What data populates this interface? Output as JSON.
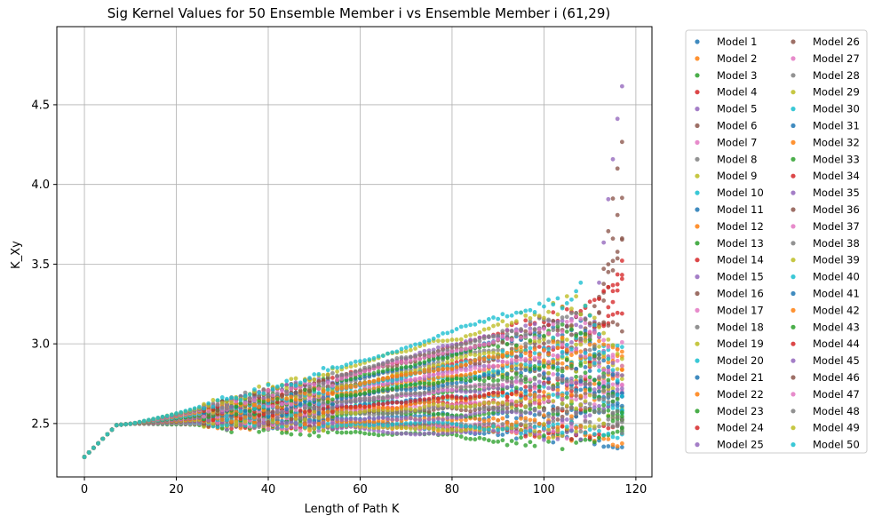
{
  "chart_data": {
    "type": "scatter",
    "title": "Sig Kernel Values for 50 Ensemble Member i vs Ensemble Member i (61,29)",
    "xlabel": "Length of Path K",
    "ylabel": "K_Xy",
    "xlim": [
      -6,
      123.5
    ],
    "ylim": [
      2.165,
      4.99
    ],
    "xticks": [
      0,
      20,
      40,
      60,
      80,
      100,
      120
    ],
    "yticks": [
      2.5,
      3.0,
      3.5,
      4.0,
      4.5
    ],
    "ytick_labels": [
      "2.5",
      "3.0",
      "3.5",
      "4.0",
      "4.5"
    ],
    "grid": true,
    "legend_placement": "outside-right",
    "legend_columns": 2,
    "x_max": 117,
    "palette": [
      "#1f77b4",
      "#ff7f0e",
      "#2ca02c",
      "#d62728",
      "#9467bd",
      "#8c564b",
      "#e377c2",
      "#7f7f7f",
      "#bcbd22",
      "#17becf"
    ],
    "series": [
      {
        "name": "Model 1",
        "end": 2.33
      },
      {
        "name": "Model 2",
        "end": 2.36
      },
      {
        "name": "Model 3",
        "end": 2.45
      },
      {
        "name": "Model 4",
        "end": 2.5
      },
      {
        "name": "Model 5",
        "end": 4.64
      },
      {
        "name": "Model 6",
        "end": 4.29
      },
      {
        "name": "Model 7",
        "end": 3.02
      },
      {
        "name": "Model 8",
        "end": 2.46
      },
      {
        "name": "Model 9",
        "end": 2.58
      },
      {
        "name": "Model 10",
        "end": 2.42
      },
      {
        "name": "Model 11",
        "end": 2.6
      },
      {
        "name": "Model 12",
        "end": 2.86
      },
      {
        "name": "Model 13",
        "end": 2.53
      },
      {
        "name": "Model 14",
        "end": 3.52
      },
      {
        "name": "Model 15",
        "end": 2.66
      },
      {
        "name": "Model 16",
        "end": 3.93
      },
      {
        "name": "Model 17",
        "end": 2.71
      },
      {
        "name": "Model 18",
        "end": 2.49
      },
      {
        "name": "Model 19",
        "end": 2.77
      },
      {
        "name": "Model 20",
        "end": 2.55
      },
      {
        "name": "Model 21",
        "end": 2.63
      },
      {
        "name": "Model 22",
        "end": 2.82
      },
      {
        "name": "Model 23",
        "end": 2.47
      },
      {
        "name": "Model 24",
        "end": 3.42
      },
      {
        "name": "Model 25",
        "end": 2.68
      },
      {
        "name": "Model 26",
        "end": 3.63
      },
      {
        "name": "Model 27",
        "end": 2.74
      },
      {
        "name": "Model 28",
        "end": 2.52
      },
      {
        "name": "Model 29",
        "end": 2.8
      },
      {
        "name": "Model 30",
        "end": 3.0
      },
      {
        "name": "Model 31",
        "end": 2.65
      },
      {
        "name": "Model 32",
        "end": 2.9
      },
      {
        "name": "Model 33",
        "end": 2.56
      },
      {
        "name": "Model 34",
        "end": 3.21
      },
      {
        "name": "Model 35",
        "end": 2.72
      },
      {
        "name": "Model 36",
        "end": 3.64
      },
      {
        "name": "Model 37",
        "end": 2.76
      },
      {
        "name": "Model 38",
        "end": 2.44
      },
      {
        "name": "Model 39",
        "end": 2.84
      },
      {
        "name": "Model 40",
        "end": 2.61
      },
      {
        "name": "Model 41",
        "end": 2.7
      },
      {
        "name": "Model 42",
        "end": 2.95
      },
      {
        "name": "Model 43",
        "end": 2.59
      },
      {
        "name": "Model 44",
        "end": 3.41
      },
      {
        "name": "Model 45",
        "end": 2.78
      },
      {
        "name": "Model 46",
        "end": 3.1
      },
      {
        "name": "Model 47",
        "end": 2.88
      },
      {
        "name": "Model 48",
        "end": 2.51
      },
      {
        "name": "Model 49",
        "end": 2.92
      },
      {
        "name": "Model 50",
        "end": 2.69
      }
    ]
  }
}
